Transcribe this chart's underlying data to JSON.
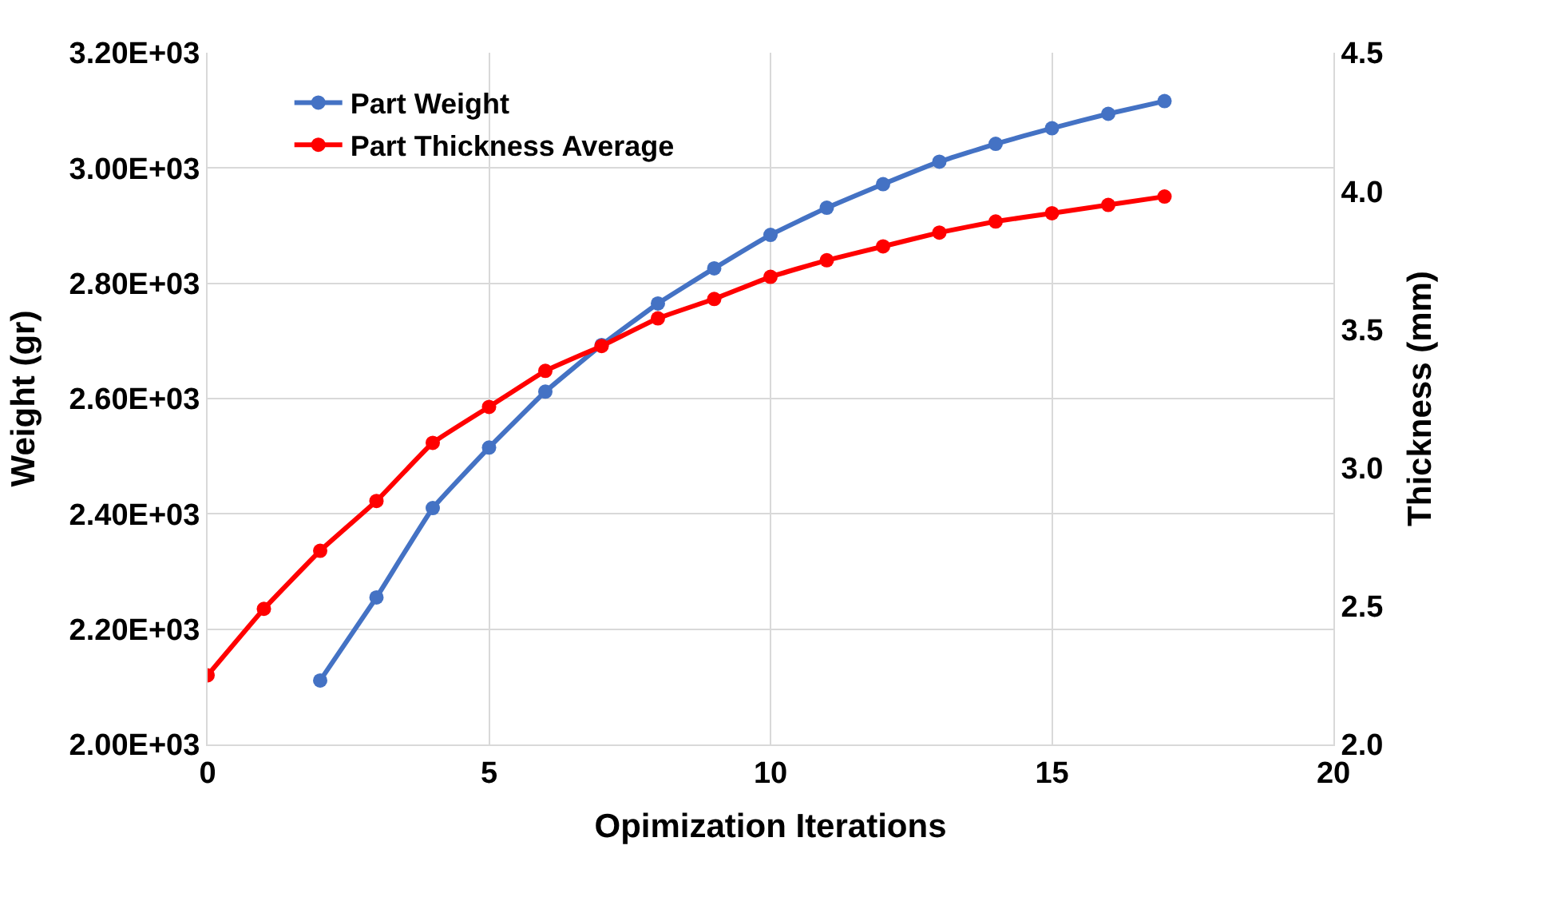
{
  "chart_data": {
    "type": "line",
    "xlabel": "Opimization Iterations",
    "ylabel": "Weight (gr)",
    "y2label": "Thickness (mm)",
    "x": [
      0,
      1,
      2,
      3,
      4,
      5,
      6,
      7,
      8,
      9,
      10,
      11,
      12,
      13,
      14,
      15,
      16,
      17
    ],
    "series": [
      {
        "name": "Part Weight",
        "color": "#4472c4",
        "values": [
          null,
          null,
          2111,
          2255,
          2410,
          2515,
          2612,
          2693,
          2765,
          2826,
          2884,
          2931,
          2972,
          3011,
          3042,
          3069,
          3094,
          3116
        ]
      },
      {
        "name": "Part Thickness Average",
        "color": "#ff0000",
        "axis": "y2",
        "values": [
          2.25,
          2.49,
          2.7,
          2.88,
          3.09,
          3.22,
          3.35,
          3.44,
          3.54,
          3.61,
          3.69,
          3.75,
          3.8,
          3.85,
          3.89,
          3.92,
          3.95,
          3.98
        ]
      }
    ],
    "xlim": [
      0,
      20
    ],
    "xticks": [
      0,
      5,
      10,
      15,
      20
    ],
    "ylim": [
      2000,
      3200
    ],
    "yticks": [
      {
        "value": 2000,
        "label": "2.00E+03"
      },
      {
        "value": 2200,
        "label": "2.20E+03"
      },
      {
        "value": 2400,
        "label": "2.40E+03"
      },
      {
        "value": 2600,
        "label": "2.60E+03"
      },
      {
        "value": 2800,
        "label": "2.80E+03"
      },
      {
        "value": 3000,
        "label": "3.00E+03"
      },
      {
        "value": 3200,
        "label": "3.20E+03"
      }
    ],
    "y2lim": [
      2.0,
      4.5
    ],
    "y2ticks": [
      {
        "value": 2,
        "label": "2.0"
      },
      2.5,
      {
        "value": 3,
        "label": "3.0"
      },
      3.5,
      {
        "value": 4,
        "label": "4.0"
      },
      4.5
    ],
    "grid": true,
    "legend": "top left",
    "marker": "circle",
    "line_style": "solid"
  }
}
